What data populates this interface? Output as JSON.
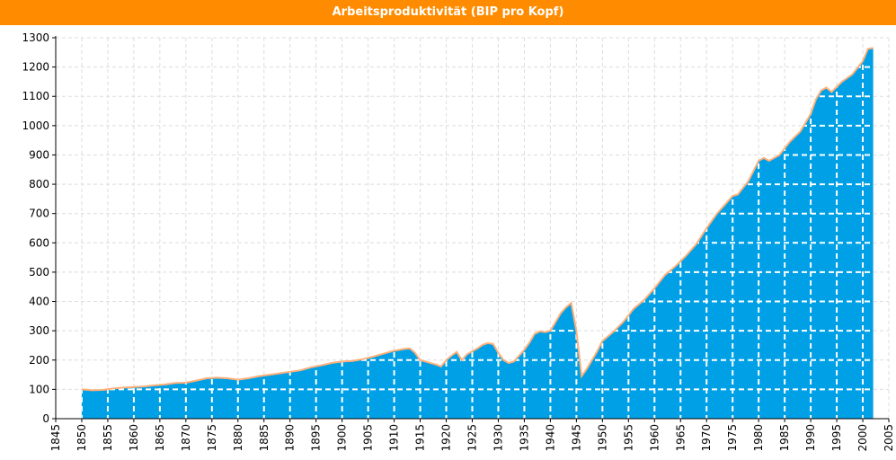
{
  "chart_data": {
    "type": "area",
    "title": "Arbeitsproduktivität (BIP pro Kopf)",
    "xlabel": "",
    "ylabel": "",
    "xlim": [
      1845,
      2005
    ],
    "ylim": [
      0,
      1300
    ],
    "x_ticks": [
      1845,
      1850,
      1855,
      1860,
      1865,
      1870,
      1875,
      1880,
      1885,
      1890,
      1895,
      1900,
      1905,
      1910,
      1915,
      1920,
      1925,
      1930,
      1935,
      1940,
      1945,
      1950,
      1955,
      1960,
      1965,
      1970,
      1975,
      1980,
      1985,
      1990,
      1995,
      2000,
      2005
    ],
    "y_ticks": [
      0,
      100,
      200,
      300,
      400,
      500,
      600,
      700,
      800,
      900,
      1000,
      1100,
      1200,
      1300
    ],
    "grid": true,
    "fill_color": "#00a0e6",
    "line_color": "#ffb07a",
    "header_color": "#ff8c00",
    "series": [
      {
        "x": [
          1850,
          1852,
          1854,
          1856,
          1858,
          1860,
          1862,
          1864,
          1866,
          1868,
          1870,
          1872,
          1874,
          1876,
          1878,
          1880,
          1882,
          1884,
          1886,
          1888,
          1890,
          1892,
          1894,
          1896,
          1898,
          1900,
          1902,
          1904,
          1906,
          1908,
          1910,
          1911,
          1912,
          1913,
          1914,
          1915,
          1916,
          1917,
          1918,
          1919,
          1920,
          1921,
          1922,
          1923,
          1924,
          1925,
          1926,
          1927,
          1928,
          1929,
          1930,
          1931,
          1932,
          1933,
          1934,
          1935,
          1936,
          1937,
          1938,
          1939,
          1940,
          1941,
          1942,
          1943,
          1944,
          1945,
          1946,
          1947,
          1948,
          1949,
          1950,
          1952,
          1954,
          1956,
          1958,
          1960,
          1962,
          1964,
          1966,
          1968,
          1970,
          1972,
          1974,
          1975,
          1976,
          1978,
          1980,
          1981,
          1982,
          1984,
          1986,
          1988,
          1990,
          1991,
          1992,
          1993,
          1994,
          1996,
          1998,
          2000,
          2001,
          2002
        ],
        "y": [
          100,
          97,
          98,
          103,
          106,
          108,
          110,
          114,
          117,
          122,
          123,
          130,
          138,
          140,
          138,
          133,
          138,
          145,
          150,
          155,
          160,
          165,
          175,
          182,
          190,
          195,
          197,
          203,
          212,
          222,
          232,
          235,
          238,
          240,
          225,
          200,
          195,
          190,
          185,
          178,
          200,
          215,
          228,
          200,
          220,
          230,
          240,
          252,
          258,
          255,
          225,
          200,
          190,
          195,
          215,
          235,
          260,
          290,
          298,
          295,
          300,
          330,
          360,
          380,
          395,
          300,
          145,
          170,
          200,
          230,
          265,
          295,
          330,
          375,
          405,
          445,
          490,
          520,
          555,
          595,
          650,
          700,
          740,
          760,
          765,
          810,
          880,
          890,
          880,
          900,
          945,
          980,
          1040,
          1090,
          1120,
          1130,
          1115,
          1150,
          1175,
          1220,
          1262,
          1265
        ]
      }
    ]
  }
}
